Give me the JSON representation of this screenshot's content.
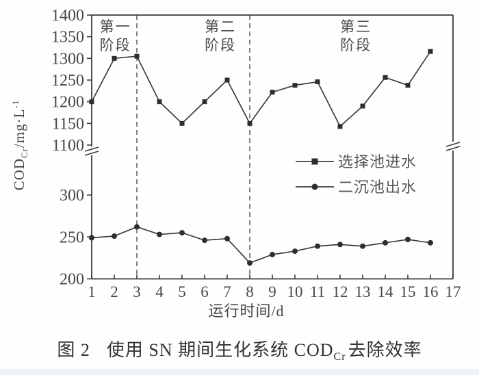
{
  "colors": {
    "ink": "#3b3b3b",
    "marker": "#2e2e2e",
    "text": "#474747",
    "legend_text": "#565656",
    "footer_strip": "#eef1f5",
    "background": "#fefefe"
  },
  "figure": {
    "caption": {
      "number": "图 2",
      "main": "使用 SN 期间生化系统 COD",
      "sub": "Cr",
      "suffix": "去除效率"
    },
    "y_axis_label": {
      "main": "COD",
      "sub": "Cr",
      "mid": "/mg·L",
      "sup": "-1"
    }
  },
  "chart_data": {
    "type": "line",
    "title": "",
    "xlabel": "运行时间/d",
    "ylabel": "COD_Cr/mg·L-1",
    "grid": false,
    "y_axis_break": true,
    "upper_ylim": [
      1100,
      1400
    ],
    "lower_ylim": [
      200,
      300
    ],
    "upper_yticks": [
      1400,
      1350,
      1300,
      1250,
      1200,
      1150,
      1100
    ],
    "lower_yticks": [
      300,
      250,
      200
    ],
    "x_ticks": [
      1,
      2,
      3,
      4,
      5,
      6,
      7,
      8,
      9,
      10,
      11,
      12,
      13,
      14,
      15,
      16,
      17
    ],
    "x": [
      1,
      2,
      3,
      4,
      5,
      6,
      7,
      8,
      9,
      10,
      11,
      12,
      13,
      14,
      15,
      16
    ],
    "series": [
      {
        "name": "选择池进水",
        "marker": "square",
        "axis": "upper",
        "values": [
          1200,
          1300,
          1305,
          1200,
          1150,
          1200,
          1250,
          1150,
          1222,
          1238,
          1246,
          1143,
          1190,
          1256,
          1238,
          1316
        ]
      },
      {
        "name": "二沉池出水",
        "marker": "circle",
        "axis": "lower",
        "values": [
          249,
          251,
          262,
          253,
          255,
          246,
          248,
          219,
          229,
          233,
          239,
          241,
          239,
          243,
          247,
          243
        ]
      }
    ],
    "phase_boundaries_x": [
      3,
      8
    ],
    "phases": [
      {
        "lines": [
          "第一",
          "阶段"
        ],
        "x_center": 2.05
      },
      {
        "lines": [
          "第二",
          "阶段"
        ],
        "x_center": 6.7
      },
      {
        "lines": [
          "第三",
          "阶段"
        ],
        "x_center": 12.7
      }
    ],
    "legend": {
      "position": "inside-center-right",
      "items": [
        {
          "label": "选择池进水",
          "marker": "square"
        },
        {
          "label": "二沉池出水",
          "marker": "circle"
        }
      ]
    }
  }
}
